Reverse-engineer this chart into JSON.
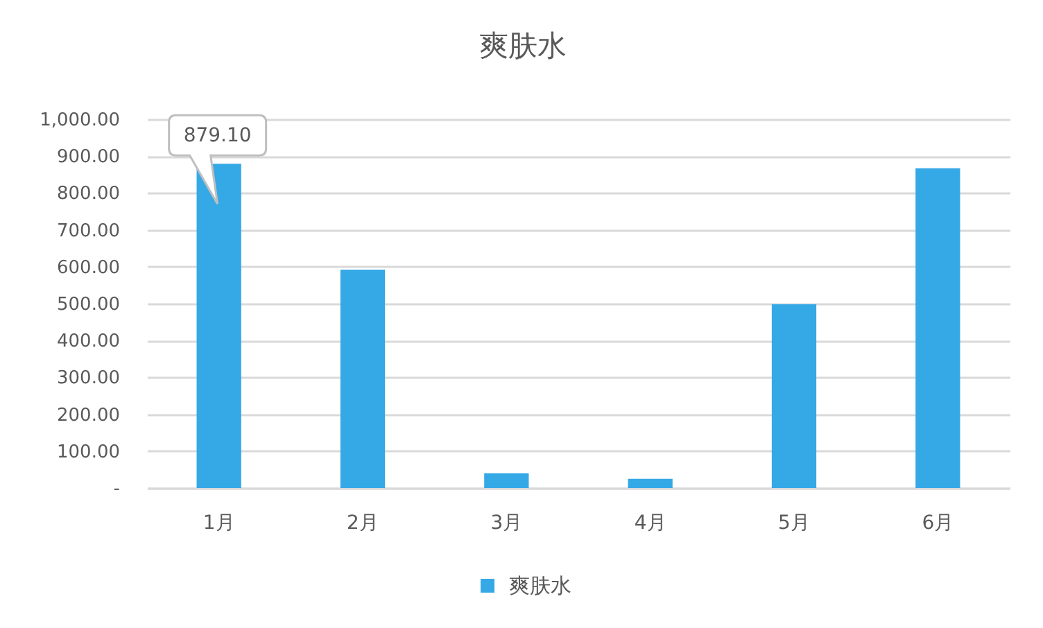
{
  "chart_data": {
    "type": "bar",
    "title": "爽肤水",
    "categories": [
      "1月",
      "2月",
      "3月",
      "4月",
      "5月",
      "6月"
    ],
    "series": [
      {
        "name": "爽肤水",
        "color": "#35a8e6",
        "values": [
          879.1,
          592,
          40,
          25,
          498,
          867
        ],
        "value_labels": [
          "879.10",
          null,
          null,
          null,
          null,
          null
        ]
      }
    ],
    "ylim": [
      0,
      1000
    ],
    "yticks": [
      {
        "value": 0,
        "label": "-"
      },
      {
        "value": 100,
        "label": "100.00"
      },
      {
        "value": 200,
        "label": "200.00"
      },
      {
        "value": 300,
        "label": "300.00"
      },
      {
        "value": 400,
        "label": "400.00"
      },
      {
        "value": 500,
        "label": "500.00"
      },
      {
        "value": 600,
        "label": "600.00"
      },
      {
        "value": 700,
        "label": "700.00"
      },
      {
        "value": 800,
        "label": "800.00"
      },
      {
        "value": 900,
        "label": "900.00"
      },
      {
        "value": 1000,
        "label": "1,000.00"
      }
    ],
    "grid": "y",
    "legend": "bottom"
  }
}
